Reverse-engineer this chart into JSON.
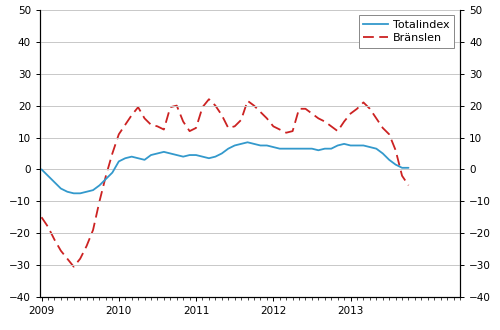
{
  "title": "",
  "ylim": [
    -40,
    50
  ],
  "yticks": [
    -40,
    -30,
    -20,
    -10,
    0,
    10,
    20,
    30,
    40,
    50
  ],
  "legend_labels": [
    "Totalindex",
    "Bränslen"
  ],
  "line_color_total": "#3399cc",
  "line_color_branslen": "#cc2222",
  "background_color": "#ffffff",
  "grid_color": "#c8c8c8",
  "totalindex": [
    0.0,
    -2.0,
    -4.0,
    -6.0,
    -7.0,
    -7.5,
    -7.5,
    -7.0,
    -6.5,
    -5.0,
    -3.0,
    -1.0,
    2.5,
    3.5,
    4.0,
    3.5,
    3.0,
    4.5,
    5.0,
    5.5,
    5.0,
    4.5,
    4.0,
    4.5,
    4.5,
    4.0,
    3.5,
    4.0,
    5.0,
    6.5,
    7.5,
    8.0,
    8.5,
    8.0,
    7.5,
    7.5,
    7.0,
    6.5,
    6.5,
    6.5,
    6.5,
    6.5,
    6.5,
    6.0,
    6.5,
    6.5,
    7.5,
    8.0,
    7.5,
    7.5,
    7.5,
    7.0,
    6.5,
    5.0,
    3.0,
    1.5,
    0.5,
    0.5
  ],
  "branslen": [
    -15.0,
    -18.0,
    -22.0,
    -25.5,
    -28.0,
    -30.5,
    -28.0,
    -24.0,
    -19.0,
    -10.0,
    -2.0,
    5.0,
    11.0,
    14.0,
    17.0,
    19.5,
    16.0,
    14.0,
    13.5,
    12.5,
    19.5,
    20.0,
    15.0,
    12.0,
    13.0,
    19.5,
    22.0,
    20.0,
    17.0,
    13.0,
    13.5,
    15.5,
    21.5,
    20.0,
    18.0,
    16.0,
    13.5,
    12.5,
    11.5,
    12.0,
    19.0,
    19.0,
    17.5,
    16.0,
    15.0,
    13.5,
    12.0,
    15.0,
    17.5,
    19.0,
    21.0,
    19.0,
    16.0,
    13.0,
    11.0,
    6.0,
    -2.0,
    -5.0
  ],
  "n_points": 58,
  "start_year": 2009,
  "start_month": 1,
  "xtick_years": [
    2009,
    2010,
    2011,
    2012,
    2013
  ],
  "tick_fontsize": 7.5,
  "legend_fontsize": 8
}
